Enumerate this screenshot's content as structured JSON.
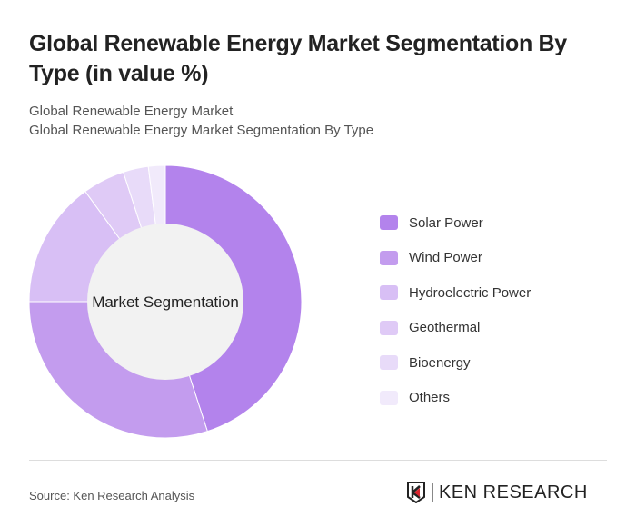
{
  "title": "Global Renewable Energy Market Segmentation By Type (in value %)",
  "subtitles": [
    "Global Renewable Energy Market",
    "Global Renewable Energy Market Segmentation By Type"
  ],
  "source": "Source: Ken Research Analysis",
  "logo_text": "KEN RESEARCH",
  "chart_data": {
    "type": "pie",
    "variant": "donut",
    "center_label": "Market Segmentation",
    "categories": [
      "Solar Power",
      "Wind Power",
      "Hydroelectric Power",
      "Geothermal",
      "Bioenergy",
      "Others"
    ],
    "values": [
      45,
      30,
      15,
      5,
      3,
      2
    ],
    "colors": [
      "#b383ec",
      "#c39cee",
      "#d8bff5",
      "#dfcaf6",
      "#e8dbf9",
      "#f1eafb"
    ],
    "legend_position": "right"
  }
}
